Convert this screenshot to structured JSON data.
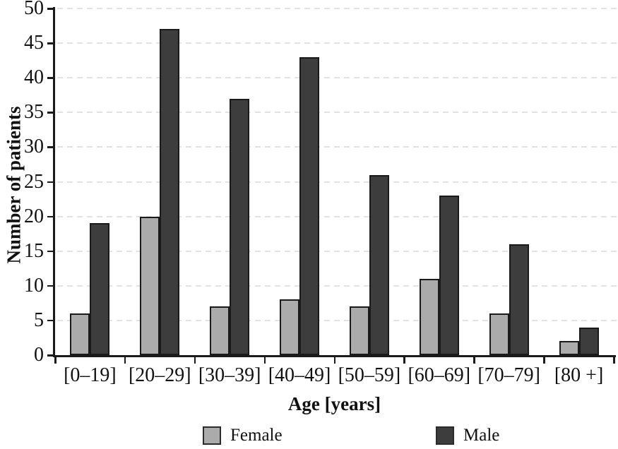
{
  "chart_data": {
    "type": "bar",
    "categories": [
      "[0–19]",
      "[20–29]",
      "[30–39]",
      "[40–49]",
      "[50–59]",
      "[60–69]",
      "[70–79]",
      "[80 +]"
    ],
    "series": [
      {
        "name": "Female",
        "color": "#ababab",
        "values": [
          6,
          20,
          7,
          8,
          7,
          11,
          6,
          2
        ]
      },
      {
        "name": "Male",
        "color": "#3d3d3d",
        "values": [
          19,
          47,
          37,
          43,
          26,
          23,
          16,
          4
        ]
      }
    ],
    "title": "",
    "xlabel": "Age [years]",
    "ylabel": "Number of patients",
    "ylim": [
      0,
      50
    ],
    "yticks": [
      0,
      5,
      10,
      15,
      20,
      25,
      30,
      35,
      40,
      45,
      50
    ],
    "grid": "horizontal-dashed",
    "legend_position": "bottom",
    "colors": {
      "axis": "#1a1a1a",
      "grid": "#e2e2e2",
      "bar_border": "#1a1a1a",
      "text": "#111111"
    }
  }
}
